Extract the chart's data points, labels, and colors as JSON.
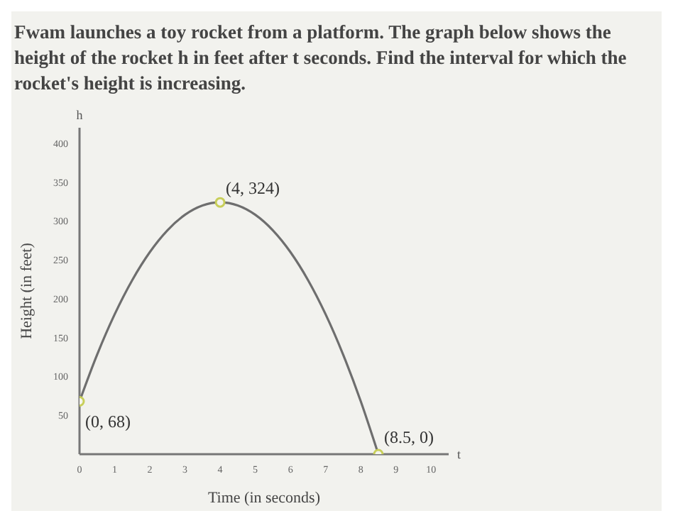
{
  "chart_data": {
    "type": "line",
    "title": "Fwam launches a toy rocket from a platform. The graph below shows the height of the rocket h in feet after t seconds. Find the interval for which the rocket's height is increasing.",
    "xlabel": "Time (in seconds)",
    "ylabel": "Height (in feet)",
    "series": [
      {
        "color": "#6e6e6e",
        "marker": "none",
        "x": [
          0,
          0.5,
          1,
          1.5,
          2,
          2.5,
          3,
          3.5,
          4,
          4.5,
          5,
          5.5,
          6,
          6.5,
          7,
          7.5,
          8,
          8.5
        ],
        "values": [
          68,
          128,
          180,
          224,
          260,
          288,
          308,
          320,
          324,
          320,
          308,
          288,
          260,
          224,
          180,
          128,
          68,
          0
        ]
      },
      {
        "type": "scatter",
        "marker": "circle",
        "color": "#c8cf5a",
        "x": [
          0,
          4,
          8.5
        ],
        "values": [
          68,
          324,
          0
        ]
      }
    ],
    "annotations": [
      "h",
      "t",
      {
        "text": "(0, 68)",
        "x": 0,
        "y": 68
      },
      {
        "text": "(4, 324)",
        "x": 4,
        "y": 324
      },
      {
        "text": "(8.5, 0)",
        "x": 8.5,
        "y": 0
      }
    ],
    "xlim": [
      0,
      10.5
    ],
    "xticks": [
      0,
      1,
      2,
      3,
      4,
      5,
      6,
      7,
      8,
      9,
      10
    ],
    "ylim": [
      0,
      420
    ],
    "yticks": [
      50,
      100,
      150,
      200,
      250,
      300,
      350,
      400
    ],
    "grid": false,
    "line_style": "solid"
  }
}
